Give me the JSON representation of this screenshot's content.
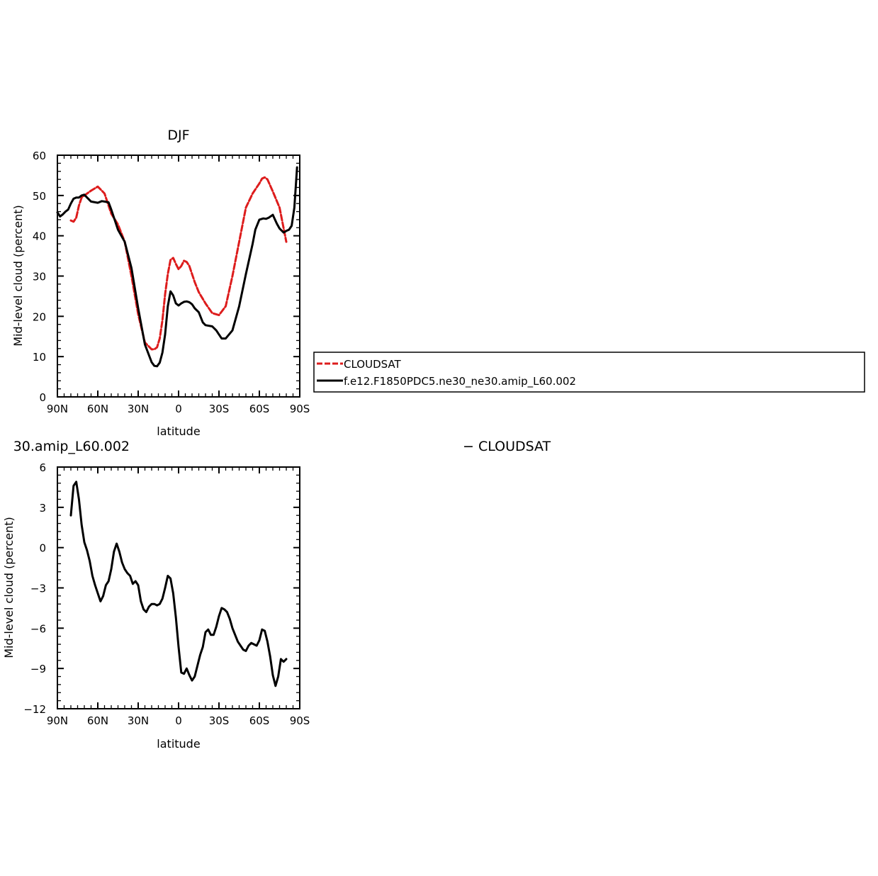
{
  "panels": [
    {
      "title": "DJF",
      "xlabel": "latitude",
      "ylabel": "Mid-level cloud (percent)",
      "x_ticks": [
        "90N",
        "60N",
        "30N",
        "0",
        "30S",
        "60S",
        "90S"
      ],
      "y_ticks": [
        "0",
        "10",
        "20",
        "30",
        "40",
        "50",
        "60"
      ]
    },
    {
      "title": "30.amip_L60.002",
      "title_right": "− CLOUDSAT",
      "xlabel": "latitude",
      "ylabel": "Mid-level cloud (percent)",
      "x_ticks": [
        "90N",
        "60N",
        "30N",
        "0",
        "30S",
        "60S",
        "90S"
      ],
      "y_ticks": [
        "−12",
        "−9",
        "−6",
        "−3",
        "0",
        "3",
        "6"
      ]
    }
  ],
  "legend": {
    "entries": [
      "CLOUDSAT",
      "f.e12.F1850PDC5.ne30_ne30.amip_L60.002"
    ]
  },
  "chart_data": [
    {
      "type": "line",
      "title": "DJF",
      "xlabel": "latitude",
      "ylabel": "Mid-level cloud (percent)",
      "x_axis": "latitude, 90N (left) to 90S (right); southern latitudes negative",
      "xlim": [
        90,
        -90
      ],
      "ylim": [
        0,
        60
      ],
      "legend_position": "right",
      "series": [
        {
          "name": "CLOUDSAT",
          "color": "#dd1c1c",
          "dash": "dashed",
          "x": [
            80,
            78,
            76,
            74,
            72,
            70,
            65,
            60,
            55,
            50,
            45,
            40,
            35,
            30,
            25,
            20,
            18,
            16,
            14,
            12,
            10,
            8,
            6,
            4,
            2,
            0,
            -2,
            -4,
            -6,
            -8,
            -10,
            -12,
            -15,
            -20,
            -25,
            -30,
            -35,
            -40,
            -45,
            -50,
            -55,
            -60,
            -62,
            -64,
            -66,
            -68,
            -70,
            -75,
            -80
          ],
          "y": [
            43.8,
            43.5,
            44.5,
            47.5,
            49.5,
            50,
            51.2,
            52.2,
            50.5,
            45.5,
            42.8,
            38.5,
            30,
            20.5,
            13.5,
            11.8,
            11.8,
            12.3,
            14.5,
            19,
            25.5,
            30.5,
            34,
            34.5,
            33,
            31.7,
            32.5,
            33.8,
            33.5,
            32.5,
            30.5,
            28.5,
            26,
            23.2,
            20.8,
            20.3,
            22.5,
            30,
            38.5,
            47,
            50.5,
            53,
            54.2,
            54.5,
            54,
            52.5,
            51,
            47,
            38.5
          ]
        },
        {
          "name": "f.e12.F1850PDC5.ne30_ne30.amip_L60.002",
          "color": "#000000",
          "dash": "solid",
          "x": [
            90,
            88,
            86,
            84,
            82,
            80,
            78,
            76,
            74,
            72,
            70,
            68,
            65,
            60,
            57,
            55,
            52,
            50,
            45,
            40,
            35,
            30,
            25,
            20,
            18,
            16,
            14,
            12,
            10,
            8,
            6,
            4,
            2,
            0,
            -2,
            -4,
            -6,
            -8,
            -10,
            -12,
            -15,
            -18,
            -20,
            -25,
            -28,
            -30,
            -32,
            -35,
            -40,
            -45,
            -50,
            -55,
            -57,
            -60,
            -63,
            -65,
            -67,
            -70,
            -73,
            -75,
            -78,
            -80,
            -82,
            -84,
            -86,
            -88
          ],
          "y": [
            45.8,
            44.8,
            45.3,
            46,
            46.5,
            48,
            49.2,
            49.5,
            49.5,
            50,
            50.2,
            49.5,
            48.5,
            48.2,
            48.6,
            48.5,
            48.3,
            46.5,
            41.5,
            38.5,
            32,
            22,
            13,
            8.6,
            7.7,
            7.6,
            8.5,
            11,
            15.5,
            22.5,
            26.2,
            25.2,
            23.2,
            22.7,
            23.2,
            23.6,
            23.7,
            23.5,
            23,
            22,
            21,
            18.5,
            17.8,
            17.5,
            16.5,
            15.5,
            14.5,
            14.5,
            16.5,
            22.5,
            30.5,
            38,
            41.5,
            44,
            44.3,
            44.2,
            44.5,
            45.2,
            43,
            41.8,
            40.8,
            41.2,
            41.5,
            42.5,
            47,
            57
          ]
        }
      ]
    },
    {
      "type": "line",
      "title": "30.amip_L60.002",
      "xlabel": "latitude",
      "ylabel": "Mid-level cloud (percent)",
      "x_axis": "latitude, 90N (left) to 90S (right); southern latitudes negative",
      "xlim": [
        90,
        -90
      ],
      "ylim": [
        -12,
        6
      ],
      "series": [
        {
          "color": "#000000",
          "dash": "solid",
          "x": [
            80,
            78,
            76,
            74,
            72,
            70,
            68,
            66,
            64,
            62,
            60,
            58,
            56,
            54,
            52,
            50,
            48,
            46,
            44,
            42,
            40,
            38,
            36,
            34,
            32,
            30,
            28,
            26,
            24,
            22,
            20,
            18,
            16,
            14,
            12,
            10,
            8,
            6,
            4,
            2,
            0,
            -2,
            -4,
            -6,
            -8,
            -10,
            -12,
            -14,
            -16,
            -18,
            -20,
            -22,
            -24,
            -26,
            -28,
            -30,
            -32,
            -34,
            -36,
            -38,
            -40,
            -42,
            -44,
            -46,
            -48,
            -50,
            -52,
            -54,
            -56,
            -58,
            -60,
            -62,
            -64,
            -66,
            -68,
            -70,
            -72,
            -74,
            -76,
            -78,
            -80
          ],
          "y": [
            2.4,
            4.6,
            4.9,
            3.6,
            1.7,
            0.4,
            -0.2,
            -1,
            -2.1,
            -2.8,
            -3.4,
            -4,
            -3.6,
            -2.8,
            -2.5,
            -1.6,
            -0.3,
            0.3,
            -0.3,
            -1.1,
            -1.6,
            -1.9,
            -2.1,
            -2.7,
            -2.5,
            -2.8,
            -4,
            -4.6,
            -4.8,
            -4.4,
            -4.2,
            -4.2,
            -4.3,
            -4.2,
            -3.8,
            -3,
            -2.1,
            -2.3,
            -3.4,
            -5.2,
            -7.4,
            -9.3,
            -9.4,
            -9,
            -9.5,
            -9.9,
            -9.6,
            -8.8,
            -8,
            -7.4,
            -6.3,
            -6.1,
            -6.5,
            -6.5,
            -5.9,
            -5.1,
            -4.5,
            -4.6,
            -4.8,
            -5.3,
            -6,
            -6.5,
            -7,
            -7.3,
            -7.6,
            -7.7,
            -7.3,
            -7.1,
            -7.2,
            -7.3,
            -6.9,
            -6.1,
            -6.2,
            -7,
            -8.1,
            -9.5,
            -10.3,
            -9.6,
            -8.3,
            -8.5,
            -8.3
          ]
        }
      ]
    }
  ]
}
